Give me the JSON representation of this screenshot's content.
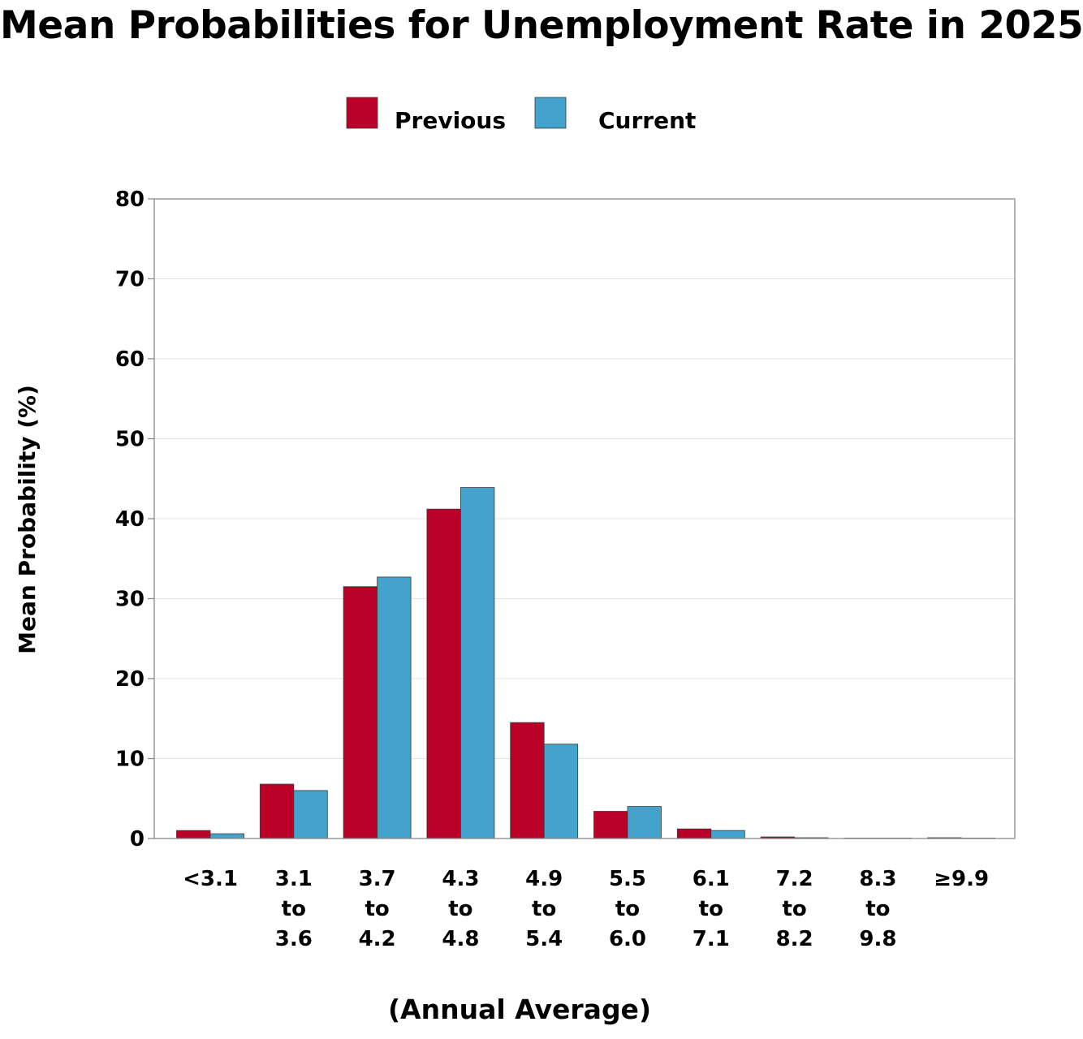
{
  "chart_data": {
    "type": "bar",
    "title": "Mean Probabilities for Unemployment Rate in 2025",
    "xlabel": "(Annual Average)",
    "ylabel": "Mean Probability (%)",
    "ylim": [
      0,
      80
    ],
    "yticks": [
      0,
      10,
      20,
      30,
      40,
      50,
      60,
      70,
      80
    ],
    "grid": true,
    "legend_position": "top-center",
    "categories": [
      "<3.1",
      "3.1 to 3.6",
      "3.7 to 4.2",
      "4.3 to 4.8",
      "4.9 to 5.4",
      "5.5 to 6.0",
      "6.1 to 7.1",
      "7.2 to 8.2",
      "8.3 to 9.8",
      "≥9.9"
    ],
    "category_lines": [
      [
        "<3.1"
      ],
      [
        "3.1",
        "to",
        "3.6"
      ],
      [
        "3.7",
        "to",
        "4.2"
      ],
      [
        "4.3",
        "to",
        "4.8"
      ],
      [
        "4.9",
        "to",
        "5.4"
      ],
      [
        "5.5",
        "to",
        "6.0"
      ],
      [
        "6.1",
        "to",
        "7.1"
      ],
      [
        "7.2",
        "to",
        "8.2"
      ],
      [
        "8.3",
        "to",
        "9.8"
      ],
      [
        "≥9.9"
      ]
    ],
    "series": [
      {
        "name": "Previous",
        "color": "#BA0026",
        "values": [
          1.0,
          6.8,
          31.5,
          41.2,
          14.5,
          3.4,
          1.2,
          0.2,
          0.05,
          0.1
        ]
      },
      {
        "name": "Current",
        "color": "#44A3CC",
        "values": [
          0.6,
          6.0,
          32.7,
          43.9,
          11.8,
          4.0,
          1.0,
          0.1,
          0.05,
          0.05
        ]
      }
    ]
  }
}
